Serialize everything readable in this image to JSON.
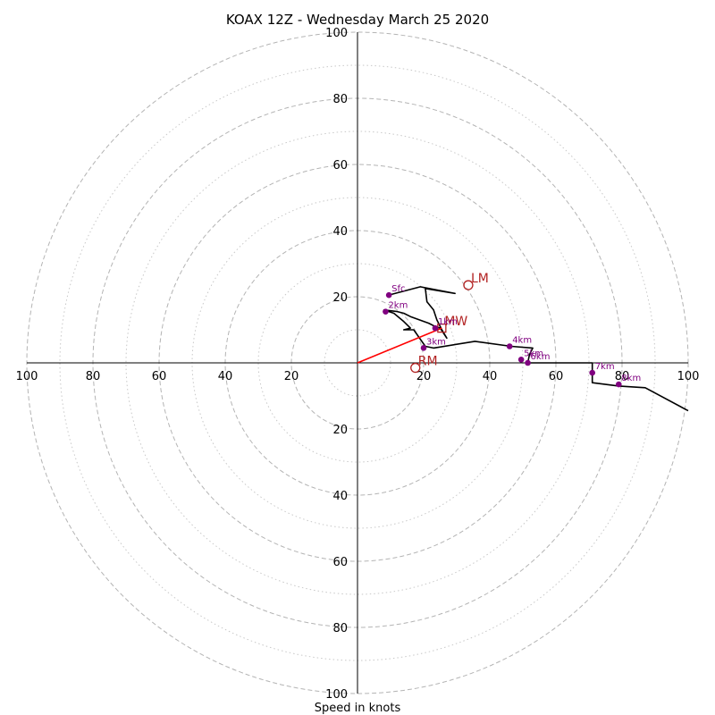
{
  "chart_data": {
    "type": "hodograph",
    "title": "KOAX 12Z - Wednesday March 25 2020",
    "xlabel": "Speed in knots",
    "ring_max": 100,
    "major_rings": [
      20,
      40,
      60,
      80,
      100
    ],
    "minor_rings": [
      10,
      30,
      50,
      70,
      90
    ],
    "tick_labels_x": [
      "100",
      "80",
      "60",
      "40",
      "20",
      "20",
      "40",
      "60",
      "80",
      "100"
    ],
    "tick_labels_y": [
      "100",
      "80",
      "60",
      "40",
      "20",
      "20",
      "40",
      "60",
      "80",
      "100"
    ],
    "hodograph": {
      "color": "#000000",
      "points": [
        [
          9.5,
          20.5
        ],
        [
          19,
          23
        ],
        [
          29.5,
          21
        ],
        [
          20.5,
          22.5
        ],
        [
          21,
          18.5
        ],
        [
          23,
          16
        ],
        [
          24,
          13
        ],
        [
          25.5,
          10
        ],
        [
          27,
          7.5
        ],
        [
          25,
          10.5
        ],
        [
          23.5,
          11
        ],
        [
          21.5,
          12
        ],
        [
          16,
          14
        ],
        [
          14,
          15
        ],
        [
          12,
          15.5
        ],
        [
          8,
          16
        ],
        [
          11,
          15
        ],
        [
          14,
          12.5
        ],
        [
          16,
          10.5
        ],
        [
          14,
          10
        ],
        [
          17,
          10
        ],
        [
          20.5,
          5
        ],
        [
          23,
          4.5
        ],
        [
          35.5,
          6.5
        ],
        [
          46.5,
          5
        ],
        [
          53,
          4.5
        ],
        [
          52,
          2.5
        ],
        [
          51.5,
          0
        ],
        [
          71,
          0
        ],
        [
          71,
          -6
        ],
        [
          79,
          -7
        ],
        [
          87,
          -7.5
        ],
        [
          100,
          -14.5
        ]
      ]
    },
    "height_markers": [
      {
        "label": "Sfc",
        "u": 9.5,
        "v": 20.5
      },
      {
        "label": "2km",
        "u": 8.5,
        "v": 15.5
      },
      {
        "label": "1km",
        "u": 23.5,
        "v": 10.5
      },
      {
        "label": "3km",
        "u": 20,
        "v": 4.5
      },
      {
        "label": "4km",
        "u": 46,
        "v": 5
      },
      {
        "label": "5km",
        "u": 49.5,
        "v": 1
      },
      {
        "label": "6km",
        "u": 51.5,
        "v": 0
      },
      {
        "label": "7km",
        "u": 71,
        "v": -3
      },
      {
        "label": "8km",
        "u": 79,
        "v": -6.5
      }
    ],
    "storm_motion": {
      "color": "#b22222",
      "points": [
        {
          "label": "LM",
          "u": 33.5,
          "v": 23.5,
          "marker": "circle"
        },
        {
          "label": "MW",
          "u": 25.5,
          "v": 10.5,
          "marker": "square"
        },
        {
          "label": "RM",
          "u": 17.5,
          "v": -1.5,
          "marker": "circle"
        }
      ],
      "vector": {
        "color": "#ff0000",
        "from": [
          0,
          0
        ],
        "to": [
          25.5,
          10.5
        ]
      }
    },
    "grid": true
  }
}
